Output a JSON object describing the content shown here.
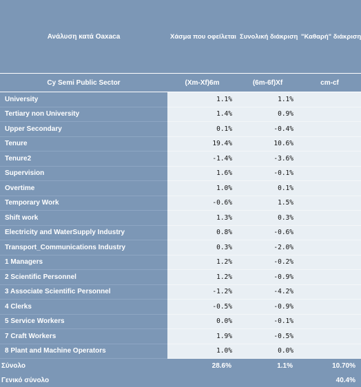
{
  "header": {
    "title": "Ανάλυση κατά Oaxaca",
    "col1": "Χάσμα που οφείλεται στα διαφορετικά χαρακτηριστικά",
    "col2": "Συνολική διάκριση από τις διαφορετικές τιμές που καταβάλλει η αγορά για ίδια χαρακτηριστικά",
    "col3": "\"Καθαρή\" διάκριση και μη καταγραφέντα χαρακτηριστικά"
  },
  "subheader": {
    "sector": "Cy Semi Public Sector",
    "col1": "(Xm-Xf)6m",
    "col2": "(6m-6f)Xf",
    "col3": "cm-cf"
  },
  "rows": [
    {
      "label": "University",
      "v1": "1.1%",
      "v2": "1.1%"
    },
    {
      "label": "Tertiary non University",
      "v1": "1.4%",
      "v2": "0.9%"
    },
    {
      "label": "Upper Secondary",
      "v1": "0.1%",
      "v2": "-0.4%"
    },
    {
      "label": "Tenure",
      "v1": "19.4%",
      "v2": "10.6%"
    },
    {
      "label": "Tenure2",
      "v1": "-1.4%",
      "v2": "-3.6%"
    },
    {
      "label": "Supervision",
      "v1": "1.6%",
      "v2": "-0.1%"
    },
    {
      "label": "Overtime",
      "v1": "1.0%",
      "v2": "0.1%"
    },
    {
      "label": "Temporary Work",
      "v1": "-0.6%",
      "v2": "1.5%"
    },
    {
      "label": "Shift work",
      "v1": "1.3%",
      "v2": "0.3%"
    },
    {
      "label": "Electricity and WaterSupply Industry",
      "v1": "0.8%",
      "v2": "-0.6%"
    },
    {
      "label": "Transport_Communications Industry",
      "v1": "0.3%",
      "v2": "-2.0%"
    },
    {
      "label": "1 Managers",
      "v1": "1.2%",
      "v2": "-0.2%"
    },
    {
      "label": "2 Scientific Personnel",
      "v1": "1.2%",
      "v2": "-0.9%"
    },
    {
      "label": "3 Associate Scientific Personnel",
      "v1": "-1.2%",
      "v2": "-4.2%"
    },
    {
      "label": "4 Clerks",
      "v1": "-0.5%",
      "v2": "-0.9%"
    },
    {
      "label": "5 Service Workers",
      "v1": "0.0%",
      "v2": "-0.1%"
    },
    {
      "label": "7 Craft Workers",
      "v1": "1.9%",
      "v2": "-0.5%"
    },
    {
      "label": "8 Plant and Machine Operators",
      "v1": "1.0%",
      "v2": "0.0%"
    }
  ],
  "total": {
    "label": "Σύνολο",
    "v1": "28.6%",
    "v2": "1.1%",
    "v3": "10.70%"
  },
  "grand_total": {
    "label": "Γενικό σύνολο",
    "v3": "40.4%"
  }
}
